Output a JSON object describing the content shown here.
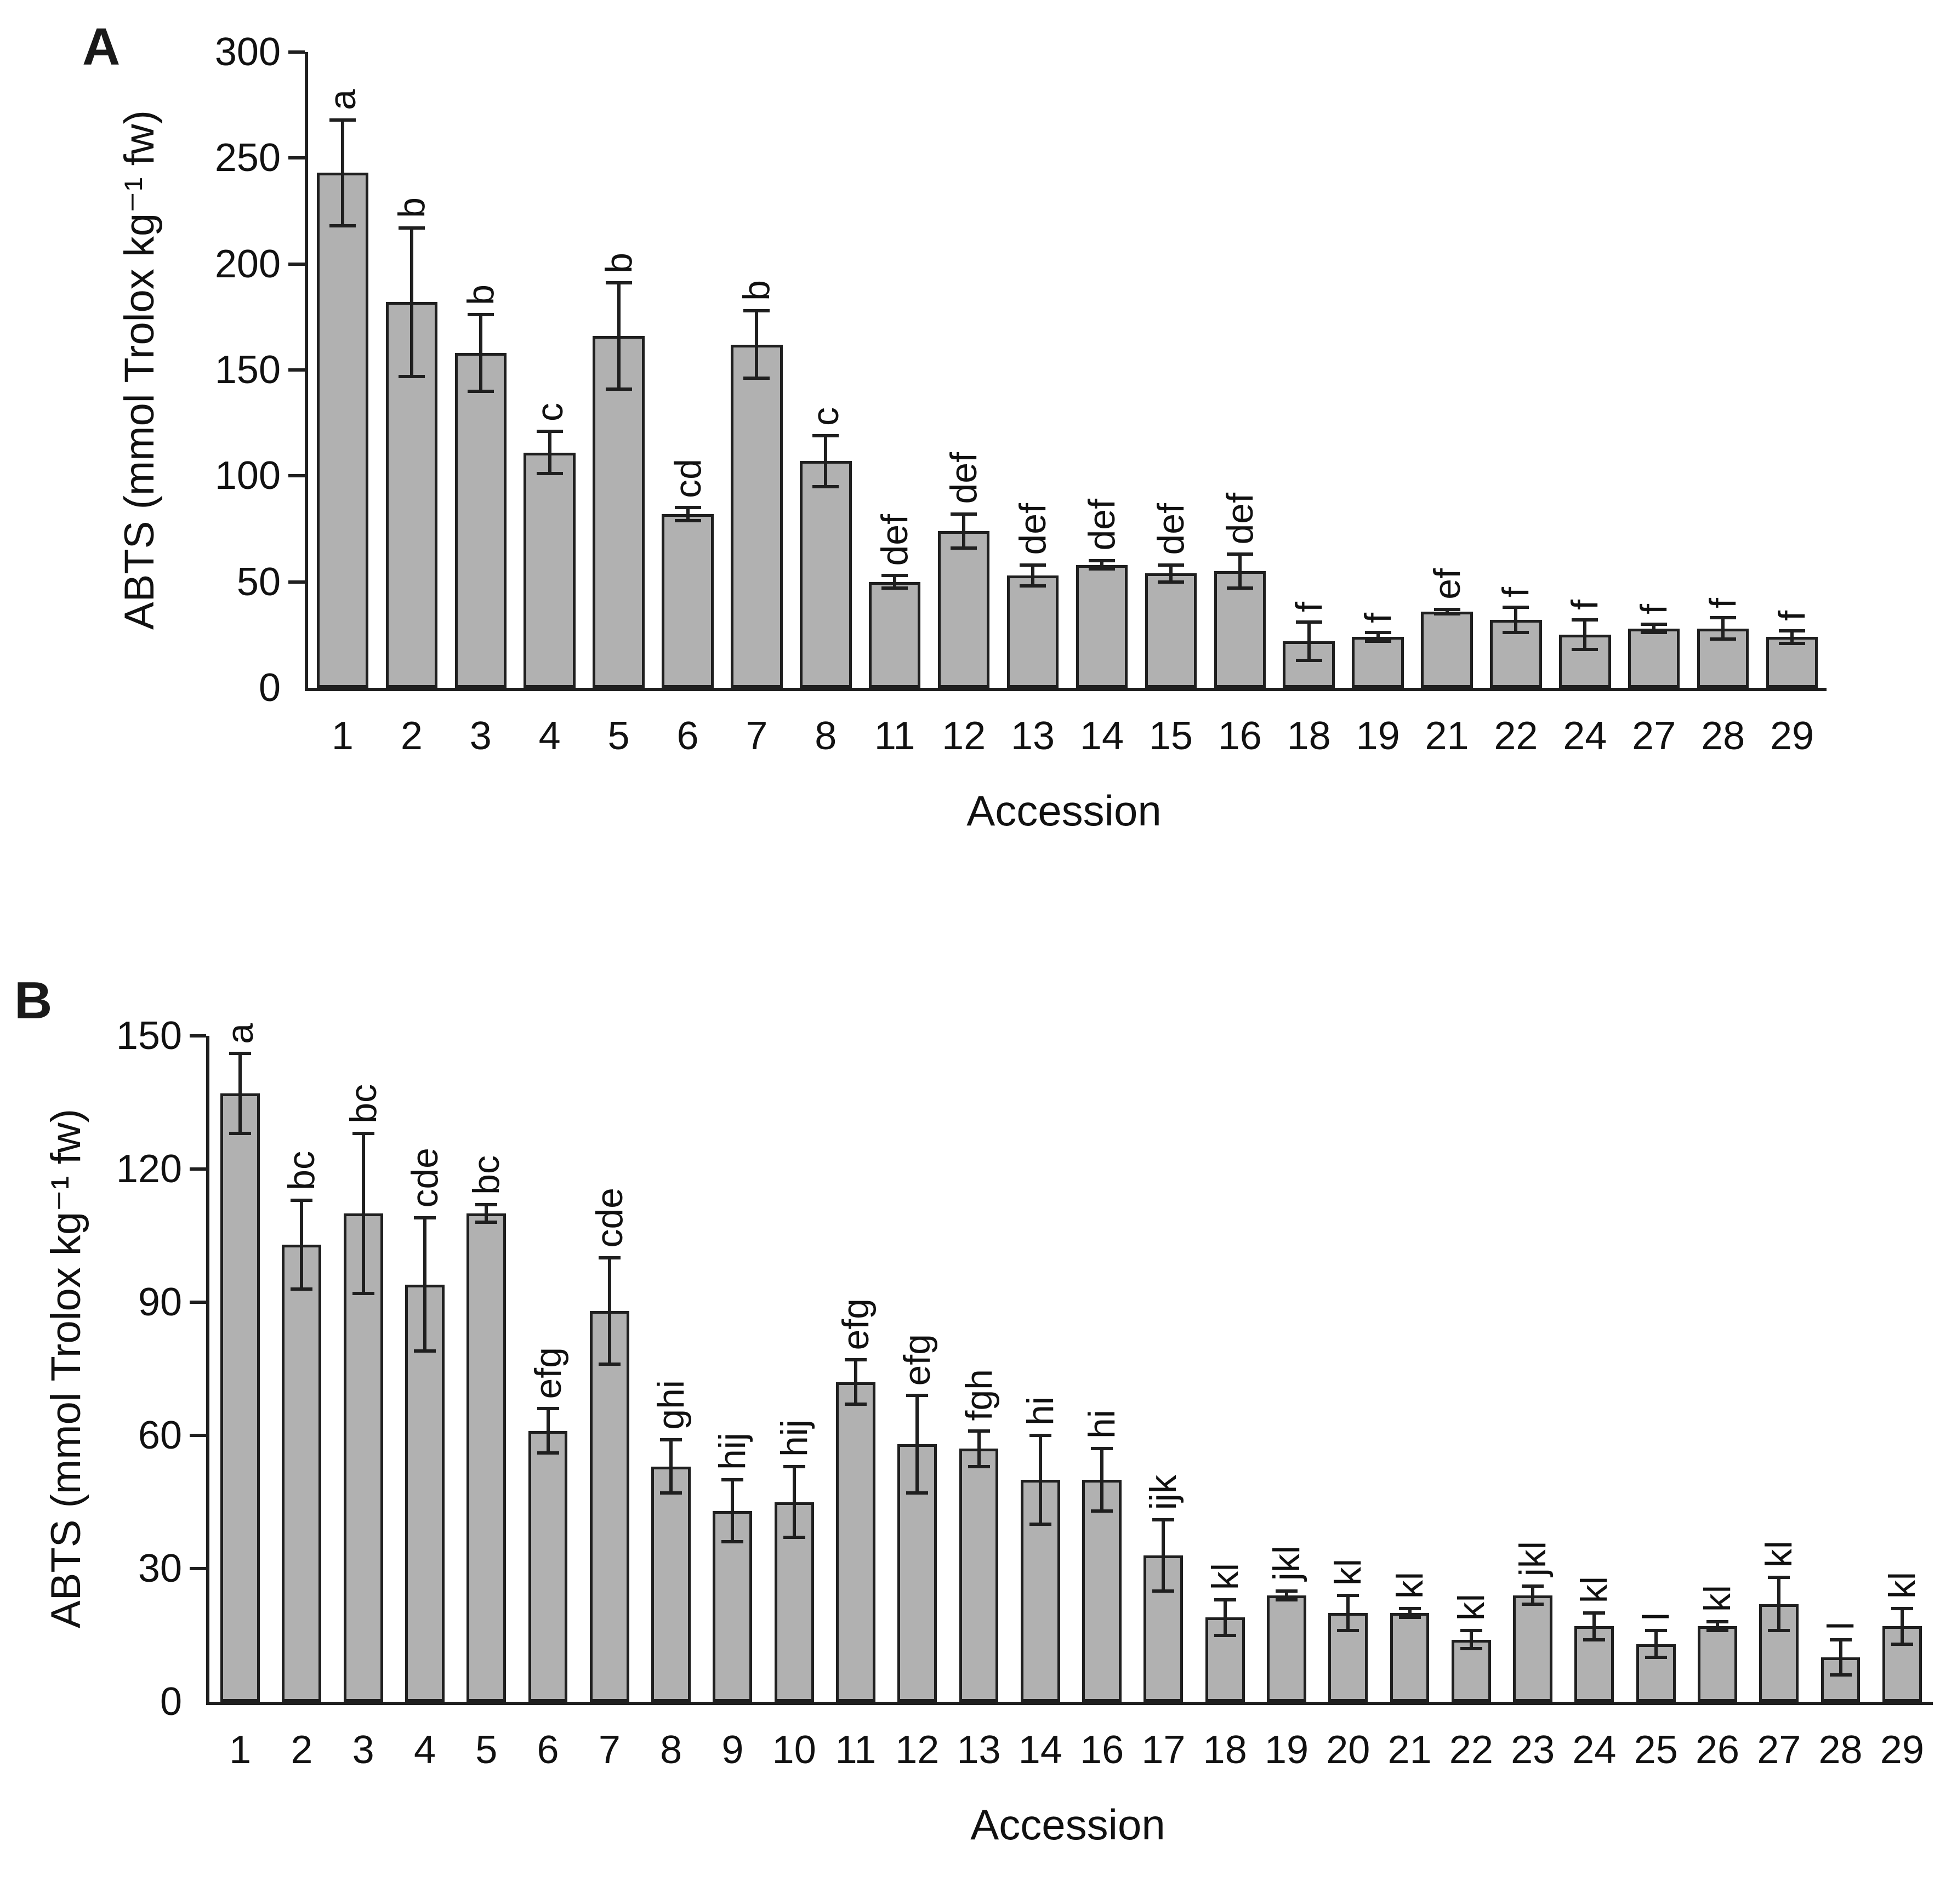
{
  "figure": {
    "colors": {
      "background": "#ffffff",
      "bar_fill": "#b1b1b1",
      "bar_border": "#1f1f1f",
      "axis": "#1f1f1f",
      "text": "#111111"
    }
  },
  "chart_data": [
    {
      "type": "bar",
      "panel_label": "A",
      "title": "",
      "ylabel": "ABTS (mmol Trolox kg⁻¹ fw)",
      "xlabel": "Accession",
      "ylim": [
        0,
        300
      ],
      "yticks": [
        0,
        50,
        100,
        150,
        200,
        250,
        300
      ],
      "grid": false,
      "legend": "none",
      "categories": [
        "1",
        "2",
        "3",
        "4",
        "5",
        "6",
        "7",
        "8",
        "11",
        "12",
        "13",
        "14",
        "15",
        "16",
        "18",
        "19",
        "21",
        "22",
        "24",
        "27",
        "28",
        "29"
      ],
      "values": [
        243,
        182,
        158,
        111,
        166,
        82,
        162,
        107,
        50,
        74,
        53,
        58,
        54,
        55,
        22,
        24,
        36,
        32,
        25,
        28,
        28,
        24
      ],
      "errors": [
        25,
        35,
        18,
        10,
        25,
        3,
        16,
        12,
        3,
        8,
        5,
        2,
        4,
        8,
        9,
        2,
        1,
        6,
        7,
        2,
        5,
        3
      ],
      "sig_letters": [
        "a",
        "b",
        "b",
        "c",
        "b",
        "cd",
        "b",
        "c",
        "def",
        "def",
        "def",
        "def",
        "def",
        "def",
        "f",
        "f",
        "ef",
        "f",
        "f",
        "f",
        "f",
        "f"
      ]
    },
    {
      "type": "bar",
      "panel_label": "B",
      "title": "",
      "ylabel": "ABTS (mmol Trolox kg⁻¹ fw)",
      "xlabel": "Accession",
      "ylim": [
        0,
        150
      ],
      "yticks": [
        0,
        30,
        60,
        90,
        120,
        150
      ],
      "grid": false,
      "legend": "none",
      "categories": [
        "1",
        "2",
        "3",
        "4",
        "5",
        "6",
        "7",
        "8",
        "9",
        "10",
        "11",
        "12",
        "13",
        "14",
        "16",
        "17",
        "18",
        "19",
        "20",
        "21",
        "22",
        "23",
        "24",
        "25",
        "26",
        "27",
        "28",
        "29"
      ],
      "values": [
        137,
        103,
        110,
        94,
        110,
        61,
        88,
        53,
        43,
        45,
        72,
        58,
        57,
        50,
        50,
        33,
        19,
        24,
        20,
        20,
        14,
        24,
        17,
        13,
        17,
        22,
        10,
        17
      ],
      "errors": [
        9,
        10,
        18,
        15,
        2,
        5,
        12,
        6,
        7,
        8,
        5,
        11,
        4,
        10,
        7,
        8,
        4,
        1,
        4,
        1,
        2,
        2,
        3,
        3,
        1,
        6,
        4,
        4
      ],
      "sig_letters": [
        "a",
        "bc",
        "bc",
        "cde",
        "bc",
        "efg",
        "cde",
        "ghi",
        "hij",
        "hij",
        "efg",
        "efg",
        "fgh",
        "hi",
        "hi",
        "ijk",
        "kl",
        "jkl",
        "kl",
        "kl",
        "kl",
        "jkl",
        "kl",
        "l",
        "kl",
        "kl",
        "l",
        "kl"
      ]
    }
  ]
}
